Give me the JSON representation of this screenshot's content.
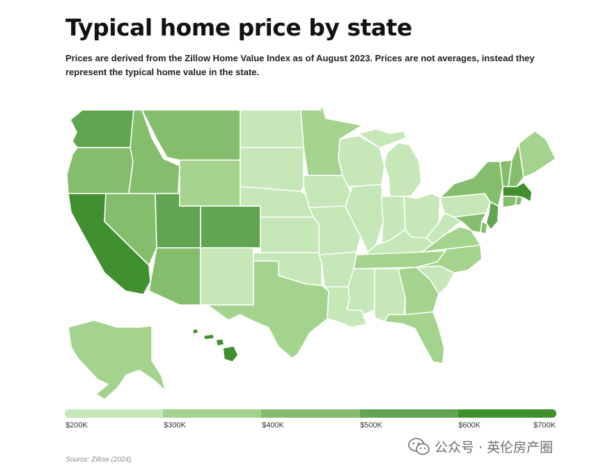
{
  "header": {
    "title": "Typical home price by state",
    "subtitle": "Prices are derived from the Zillow Home Value Index as of August 2023. Prices are not averages, instead they represent the typical home value in the state."
  },
  "palette": {
    "l1": "#c6e7b7",
    "l2": "#a4d38d",
    "l3": "#84bd6c",
    "l4": "#60a550",
    "l5": "#40902f"
  },
  "legend": {
    "colors": [
      "#c6e7b7",
      "#a4d38d",
      "#84bd6c",
      "#60a550",
      "#40902f"
    ],
    "labels": [
      "$200K",
      "$300K",
      "$400K",
      "$500K",
      "$600K",
      "$700K"
    ]
  },
  "states": {
    "WA": "l4",
    "OR": "l3",
    "CA": "l5",
    "NV": "l3",
    "ID": "l3",
    "MT": "l3",
    "WY": "l2",
    "UT": "l4",
    "CO": "l4",
    "AZ": "l3",
    "NM": "l1",
    "TX": "l2",
    "ND": "l1",
    "SD": "l1",
    "NE": "l1",
    "KS": "l1",
    "OK": "l1",
    "MN": "l2",
    "IA": "l1",
    "MO": "l1",
    "AR": "l1",
    "LA": "l1",
    "WI": "l1",
    "IL": "l1",
    "MI": "l1",
    "IN": "l1",
    "OH": "l1",
    "KY": "l1",
    "TN": "l2",
    "MS": "l1",
    "AL": "l1",
    "GA": "l2",
    "FL": "l2",
    "SC": "l1",
    "NC": "l2",
    "VA": "l2",
    "WV": "l1",
    "PA": "l1",
    "NY": "l3",
    "VT": "l3",
    "NH": "l3",
    "ME": "l2",
    "MA": "l5",
    "CT": "l3",
    "RI": "l3",
    "NJ": "l4",
    "DE": "l3",
    "MD": "l3",
    "AK": "l2",
    "HI": "l5"
  },
  "source": "Source: Zillow (2024).",
  "watermark": "公众号 · 英伦房产圈"
}
